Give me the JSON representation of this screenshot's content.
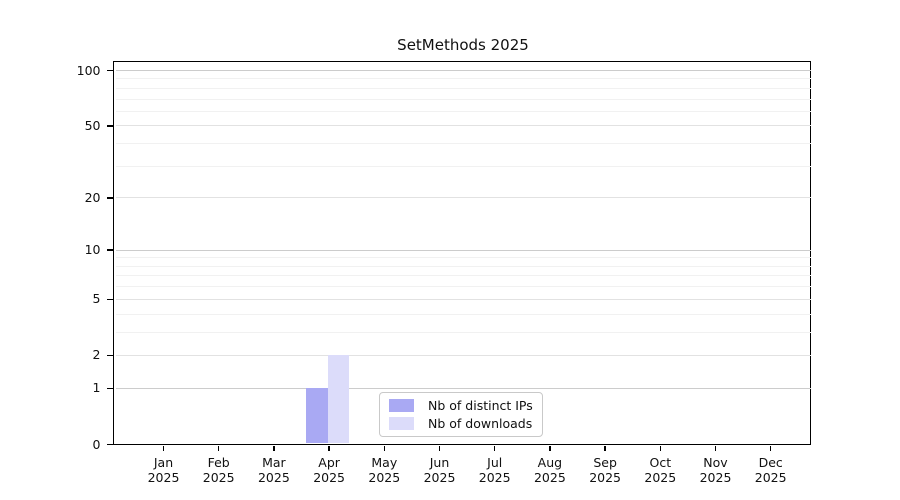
{
  "title": "SetMethods 2025",
  "chart_data": {
    "type": "bar",
    "title": "SetMethods 2025",
    "categories": [
      "Jan",
      "Feb",
      "Mar",
      "Apr",
      "May",
      "Jun",
      "Jul",
      "Aug",
      "Sep",
      "Oct",
      "Nov",
      "Dec"
    ],
    "year_label": "2025",
    "series": [
      {
        "name": "Nb of distinct IPs",
        "color": "#a9a9f3",
        "values": [
          0,
          0,
          0,
          1,
          0,
          0,
          0,
          0,
          0,
          0,
          0,
          0
        ]
      },
      {
        "name": "Nb of downloads",
        "color": "#dcdcfa",
        "values": [
          0,
          0,
          0,
          2,
          0,
          0,
          0,
          0,
          0,
          0,
          0,
          0
        ]
      }
    ],
    "y_axis": {
      "scale": "log1p",
      "ticks": [
        0,
        1,
        2,
        5,
        10,
        20,
        50,
        100
      ],
      "minor_ticks": [
        3,
        4,
        6,
        7,
        8,
        9,
        30,
        40,
        60,
        70,
        80,
        90
      ],
      "ylim": [
        0,
        100
      ]
    },
    "legend_position": "lower center",
    "grid": true
  }
}
